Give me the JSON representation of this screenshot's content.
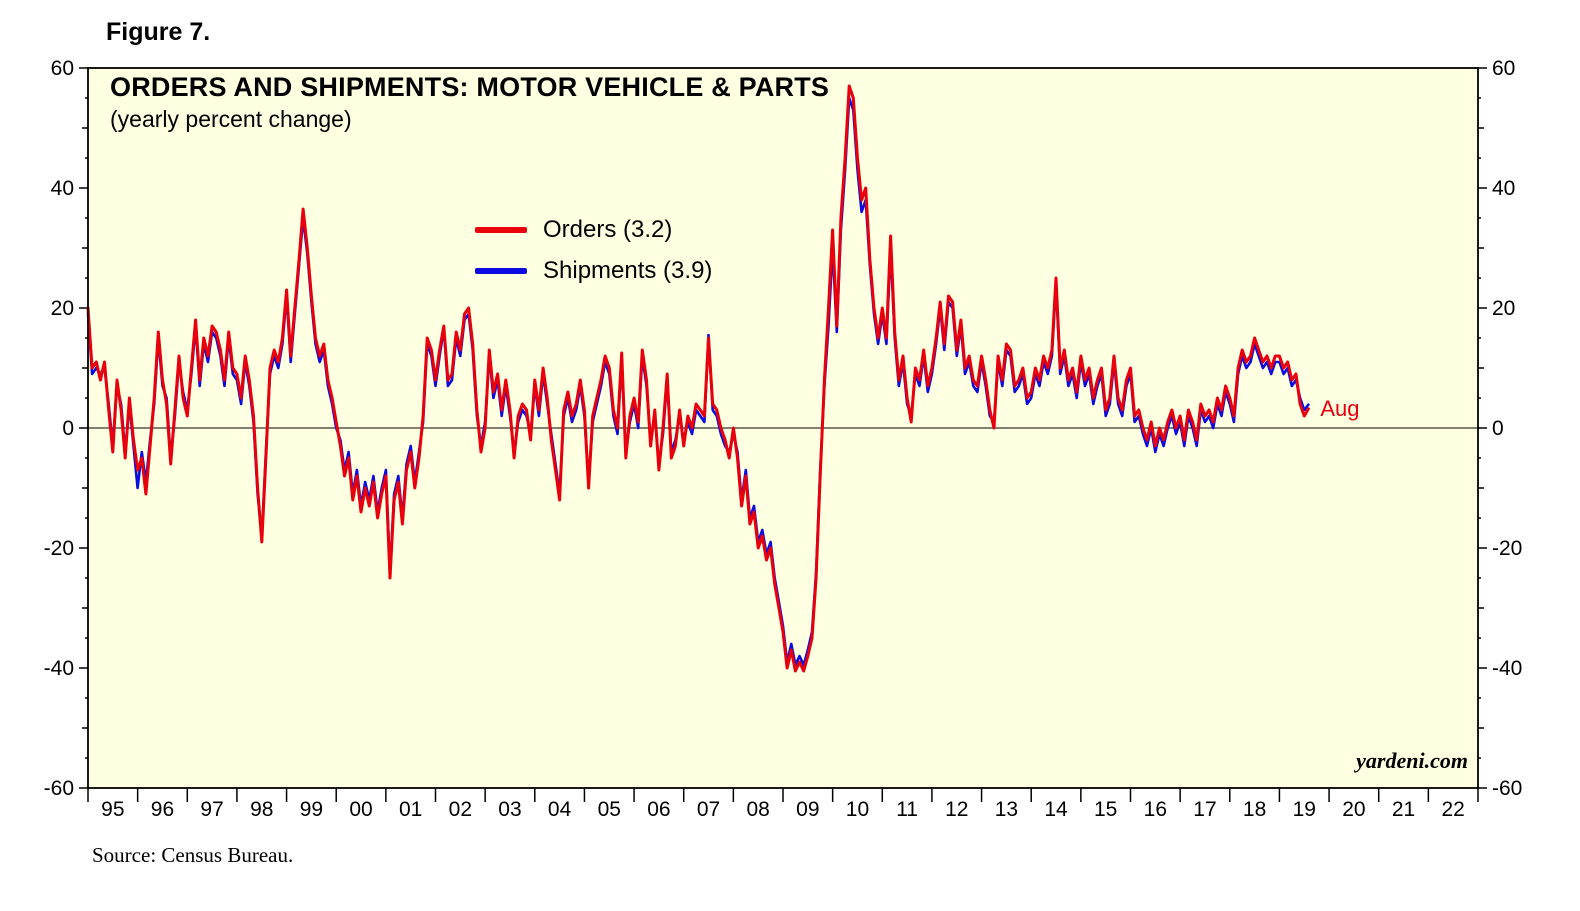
{
  "figure_label": "Figure 7.",
  "source": "Source: Census Bureau.",
  "watermark": "yardeni.com",
  "annotation": "Aug",
  "colors": {
    "background": "#FFFFE2",
    "frame": "#000000",
    "orders": "#E8000D",
    "shipments": "#0B0BE0"
  },
  "chart_data": {
    "type": "line",
    "title": "ORDERS AND SHIPMENTS: MOTOR VEHICLE & PARTS",
    "subtitle": "(yearly percent change)",
    "frequency": "monthly",
    "x_start_year": 1995,
    "x_end_label": "Aug 2019",
    "x_axis_years": [
      "95",
      "96",
      "97",
      "98",
      "99",
      "00",
      "01",
      "02",
      "03",
      "04",
      "05",
      "06",
      "07",
      "08",
      "09",
      "10",
      "11",
      "12",
      "13",
      "14",
      "15",
      "16",
      "17",
      "18",
      "19",
      "20",
      "21",
      "22"
    ],
    "ylim": [
      -60,
      60
    ],
    "y_ticks": [
      -60,
      -40,
      -20,
      0,
      20,
      40,
      60
    ],
    "grid": false,
    "legend_position": "inside-top-left-center",
    "series": [
      {
        "name": "Orders",
        "label": "Orders (3.2)",
        "latest_value": 3.2,
        "color": "#E8000D",
        "values": [
          20,
          10,
          11,
          8,
          11,
          3,
          -4,
          8,
          3,
          -5,
          5,
          -2,
          -7,
          -5,
          -11,
          -3,
          5,
          16,
          8,
          4,
          -6,
          3,
          12,
          5,
          2,
          10,
          18,
          8,
          15,
          12,
          17,
          16,
          13,
          8,
          16,
          10,
          9,
          5,
          12,
          8,
          2,
          -10,
          -19,
          -5,
          10,
          13,
          11,
          15,
          23,
          12,
          20,
          28,
          36.5,
          30,
          22,
          15,
          12,
          14,
          8,
          5,
          1,
          -3,
          -8,
          -5,
          -12,
          -8,
          -14,
          -10,
          -13,
          -9,
          -15,
          -11,
          -8,
          -25,
          -12,
          -9,
          -16,
          -7,
          -4,
          -10,
          -5,
          2,
          15,
          13,
          8,
          13,
          17,
          8,
          9,
          16,
          13,
          19,
          20,
          14,
          3,
          -4,
          0,
          13,
          6,
          9,
          3,
          8,
          3,
          -5,
          2,
          4,
          3,
          -2,
          8,
          3,
          10,
          5,
          -2,
          -7,
          -12,
          3,
          6,
          2,
          4,
          8,
          3,
          -10,
          2,
          5,
          8,
          12,
          10,
          3,
          0,
          12.5,
          -5,
          2,
          5,
          1,
          13,
          8,
          -3,
          3,
          -7,
          0,
          9,
          -5,
          -3,
          3,
          -3,
          2,
          0,
          4,
          3,
          2,
          15,
          4,
          3,
          0,
          -2,
          -5,
          0,
          -5,
          -13,
          -8,
          -16,
          -14,
          -20,
          -18,
          -22,
          -20,
          -26,
          -30,
          -34,
          -40,
          -37,
          -40.5,
          -39,
          -40.5,
          -38,
          -35,
          -25,
          -8,
          8,
          20,
          33,
          17,
          35,
          45,
          57,
          55,
          45,
          38,
          40,
          28,
          20,
          15,
          20,
          15,
          32,
          16,
          8,
          12,
          5,
          1,
          10,
          8,
          13,
          7,
          10,
          15,
          21,
          14,
          22,
          21,
          13,
          18,
          10,
          12,
          8,
          7,
          12,
          8,
          3,
          0,
          12,
          8,
          14,
          13,
          7,
          8,
          10,
          5,
          6,
          10,
          8,
          12,
          10,
          13,
          25,
          10,
          13,
          8,
          10,
          6,
          12,
          8,
          10,
          5,
          8,
          10,
          3,
          5,
          12,
          5,
          3,
          8,
          10,
          2,
          3,
          0,
          -2,
          1,
          -3,
          0,
          -2,
          1,
          3,
          0,
          2,
          -2,
          3,
          1,
          -2,
          4,
          2,
          3,
          1,
          5,
          3,
          7,
          5,
          2,
          10,
          13,
          11,
          12,
          15,
          13,
          11,
          12,
          10,
          12,
          12,
          10,
          11,
          8,
          9,
          4,
          2,
          3.2
        ]
      },
      {
        "name": "Shipments",
        "label": "Shipments (3.9)",
        "latest_value": 3.9,
        "color": "#0B0BE0",
        "values": [
          19,
          9,
          10,
          9,
          10,
          4,
          -3,
          7,
          4,
          -4,
          4,
          -3,
          -10,
          -4,
          -9,
          -2,
          4,
          15,
          7,
          5,
          -5,
          2,
          11,
          6,
          3,
          9,
          17,
          7,
          14,
          11,
          16,
          15,
          12,
          7,
          15,
          9,
          8,
          4,
          11,
          7,
          1,
          -11,
          -18,
          -4,
          9,
          12,
          10,
          14,
          22,
          11,
          19,
          27,
          35,
          29,
          21,
          14,
          11,
          13,
          7,
          4,
          0,
          -2,
          -7,
          -4,
          -11,
          -7,
          -13,
          -9,
          -12,
          -8,
          -14,
          -10,
          -7,
          -24,
          -11,
          -8,
          -15,
          -6,
          -3,
          -9,
          -4,
          1,
          14,
          12,
          7,
          12,
          16.5,
          7,
          8,
          15,
          12,
          18,
          19,
          13,
          2,
          -3,
          1,
          12,
          5,
          8,
          2,
          7,
          2,
          -4,
          1,
          3,
          2,
          -1,
          7,
          2,
          9,
          4,
          -1,
          -6,
          -11,
          2,
          5,
          1,
          3,
          7,
          2,
          -9,
          1,
          4,
          7,
          11,
          9,
          2,
          -1,
          11.5,
          -4,
          1,
          4,
          0,
          12,
          7,
          -2,
          2,
          -6,
          -1,
          8,
          -4,
          -2,
          2,
          -2,
          1,
          -1,
          3,
          2,
          1,
          15.5,
          3,
          2,
          -1,
          -3,
          -4,
          -1,
          -4,
          -12,
          -7,
          -15,
          -13,
          -19,
          -17,
          -21,
          -19,
          -25,
          -29,
          -33,
          -39,
          -36,
          -39.5,
          -38,
          -39.5,
          -37,
          -34,
          -24,
          -7,
          7,
          17,
          30,
          16,
          33,
          43,
          55,
          53,
          43,
          36,
          38,
          27,
          19,
          14,
          19,
          14,
          30,
          15,
          7,
          11,
          4,
          2,
          9,
          7,
          12,
          6,
          9,
          14,
          20,
          13,
          21,
          20,
          12,
          17,
          9,
          11,
          7,
          6,
          11,
          7,
          2,
          1,
          11,
          7,
          13,
          12,
          6,
          7,
          9,
          4,
          5,
          9,
          7,
          11,
          9,
          12,
          24,
          9,
          12,
          7,
          9,
          5,
          11,
          7,
          9,
          4,
          7,
          9,
          2,
          4,
          11,
          4,
          2,
          7,
          9,
          1,
          2,
          -1,
          -3,
          0,
          -4,
          -1,
          -3,
          0,
          2,
          -1,
          1,
          -3,
          2,
          0,
          -3,
          3,
          1,
          2,
          0,
          4,
          2,
          6,
          4,
          1,
          9,
          12,
          10,
          11,
          14,
          12,
          10,
          11,
          9,
          11,
          11,
          9,
          10,
          7,
          8,
          5,
          3,
          3.9
        ]
      }
    ]
  }
}
